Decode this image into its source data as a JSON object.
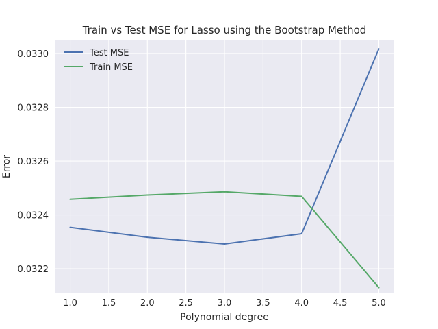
{
  "chart_data": {
    "type": "line",
    "title": "Train vs Test MSE for Lasso using the Bootstrap Method",
    "xlabel": "Polynomial degree",
    "ylabel": "Error",
    "x": [
      1.0,
      2.0,
      3.0,
      4.0,
      5.0
    ],
    "series": [
      {
        "name": "Test MSE",
        "color": "#4c72b0",
        "values": [
          0.032354,
          0.032317,
          0.032292,
          0.03233,
          0.033017
        ]
      },
      {
        "name": "Train MSE",
        "color": "#55a868",
        "values": [
          0.032458,
          0.032474,
          0.032486,
          0.032469,
          0.03213
        ]
      }
    ],
    "xlim": [
      0.8,
      5.2
    ],
    "ylim": [
      0.032111,
      0.033051
    ],
    "xticks": [
      1.0,
      1.5,
      2.0,
      2.5,
      3.0,
      3.5,
      4.0,
      4.5,
      5.0
    ],
    "xtick_labels": [
      "1.0",
      "1.5",
      "2.0",
      "2.5",
      "3.0",
      "3.5",
      "4.0",
      "4.5",
      "5.0"
    ],
    "yticks": [
      0.0322,
      0.0324,
      0.0326,
      0.0328,
      0.033
    ],
    "ytick_labels": [
      "0.0322",
      "0.0324",
      "0.0326",
      "0.0328",
      "0.0330"
    ],
    "grid": true,
    "legend_position": "top-left",
    "background": "#eaeaf2"
  }
}
